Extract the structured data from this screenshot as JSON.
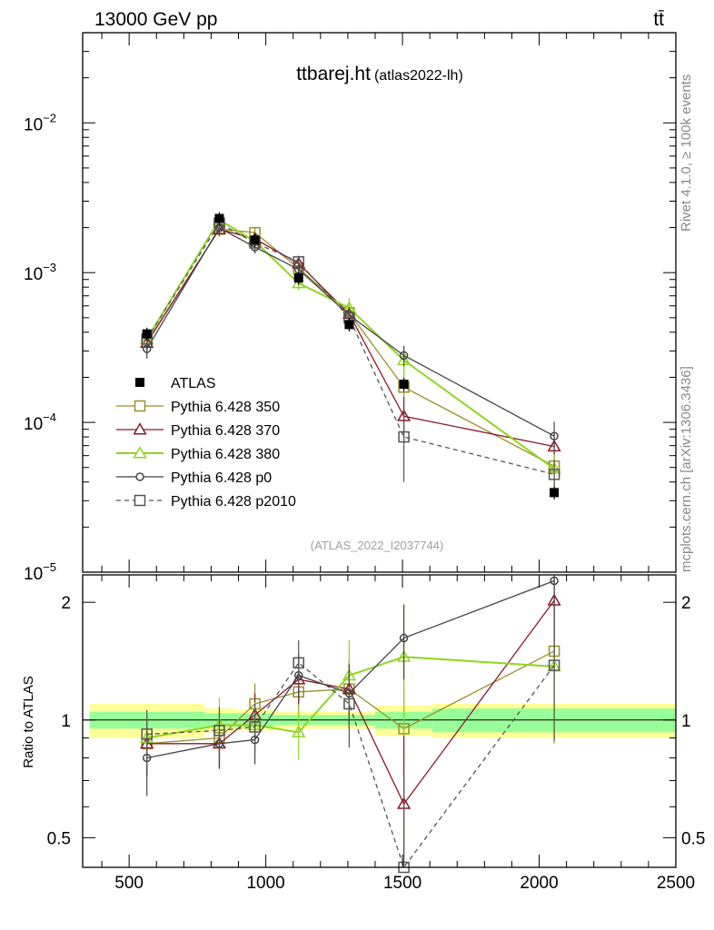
{
  "header": {
    "left": "13000 GeV pp",
    "right": "tt̄",
    "title_main": "ttbarej.ht",
    "title_sub": "(atlas2022-lh)",
    "side_top": "Rivet 4.1.0, ≥ 100k events",
    "side_bottom": "mcplots.cern.ch [arXiv:1306.3436]",
    "analysis_id": "(ATLAS_2022_I2037744)",
    "ratio_ylabel": "Ratio to ATLAS"
  },
  "chart_data": {
    "type": "line",
    "xlim": [
      330,
      2500
    ],
    "ylim_main": [
      1e-05,
      0.04
    ],
    "ylim_ratio": [
      0.42,
      2.35
    ],
    "x_ticks": [
      "500",
      "1000",
      "1500",
      "2000",
      "2500"
    ],
    "x_tick_values": [
      500,
      1000,
      1500,
      2000,
      2500
    ],
    "y_ticks_main": [
      {
        "value": 0.01,
        "base": "10",
        "exp": "−2"
      },
      {
        "value": 0.001,
        "base": "10",
        "exp": "−3"
      },
      {
        "value": 0.0001,
        "base": "10",
        "exp": "−4"
      },
      {
        "value": 1e-05,
        "base": "10",
        "exp": "−5"
      }
    ],
    "y_ticks_ratio": [
      {
        "value": 2,
        "label": "2"
      },
      {
        "value": 1,
        "label": "1"
      },
      {
        "value": 0.5,
        "label": "0.5"
      }
    ],
    "x": [
      565,
      830,
      960,
      1120,
      1305,
      1505,
      2055
    ],
    "data": {
      "name": "ATLAS",
      "bins": [
        [
          355,
          775
        ],
        [
          775,
          890
        ],
        [
          890,
          1030
        ],
        [
          1030,
          1210
        ],
        [
          1210,
          1400
        ],
        [
          1400,
          1610
        ],
        [
          1610,
          2500
        ]
      ],
      "values": [
        0.00039,
        0.0023,
        0.00165,
        0.00092,
        0.00045,
        0.00018,
        3.4e-05
      ],
      "band_inner": [
        0.05,
        0.04,
        0.04,
        0.03,
        0.03,
        0.05,
        0.07
      ],
      "band_outer": [
        0.1,
        0.07,
        0.06,
        0.05,
        0.05,
        0.09,
        0.1
      ]
    },
    "series": [
      {
        "name": "Pythia 6.428 350",
        "color": "#9a8f2a",
        "marker": "square",
        "dash": false,
        "values": [
          0.000345,
          0.00195,
          0.00185,
          0.00107,
          0.00054,
          0.000172,
          5.1e-05
        ],
        "ratio": [
          0.87,
          0.9,
          1.1,
          1.18,
          1.2,
          0.95,
          1.5
        ],
        "ratio_err": [
          0.15,
          0.14,
          0.14,
          0.16,
          0.22,
          0.5,
          0.6
        ]
      },
      {
        "name": "Pythia 6.428 370",
        "color": "#8b1a2b",
        "marker": "triangle",
        "dash": false,
        "values": [
          0.00034,
          0.00195,
          0.00168,
          0.00115,
          0.00053,
          0.00011,
          6.9e-05
        ],
        "ratio": [
          0.87,
          0.87,
          1.03,
          1.27,
          1.2,
          0.61,
          2.02
        ],
        "ratio_err": [
          0.15,
          0.12,
          0.14,
          0.17,
          0.22,
          0.3,
          0.7
        ]
      },
      {
        "name": "Pythia 6.428 380",
        "color": "#8ed61e",
        "marker": "triangle",
        "dash": false,
        "values": [
          0.00036,
          0.00225,
          0.00162,
          0.00085,
          0.00058,
          0.00026,
          4.9e-05
        ],
        "ratio": [
          0.9,
          0.97,
          0.97,
          0.93,
          1.3,
          1.45,
          1.37
        ],
        "ratio_err": [
          0.14,
          0.17,
          0.14,
          0.14,
          0.3,
          0.53,
          0.5
        ]
      },
      {
        "name": "Pythia 6.428 p0",
        "color": "#454545",
        "marker": "circle",
        "dash": false,
        "values": [
          0.00031,
          0.00199,
          0.00148,
          0.00105,
          0.00052,
          0.00028,
          8.1e-05
        ],
        "ratio": [
          0.8,
          0.87,
          0.89,
          1.3,
          1.17,
          1.62,
          2.27
        ],
        "ratio_err": [
          0.16,
          0.12,
          0.12,
          0.18,
          0.22,
          0.35,
          0.8
        ]
      },
      {
        "name": "Pythia 6.428 p2010",
        "color": "#555555",
        "marker": "square",
        "dash": true,
        "values": [
          0.00036,
          0.00214,
          0.00158,
          0.00118,
          0.0005,
          8e-05,
          4.5e-05
        ],
        "ratio": [
          0.92,
          0.94,
          0.96,
          1.4,
          1.1,
          0.42,
          1.38
        ],
        "ratio_err": [
          0.14,
          0.14,
          0.14,
          0.2,
          0.25,
          0.3,
          0.5
        ]
      }
    ]
  }
}
